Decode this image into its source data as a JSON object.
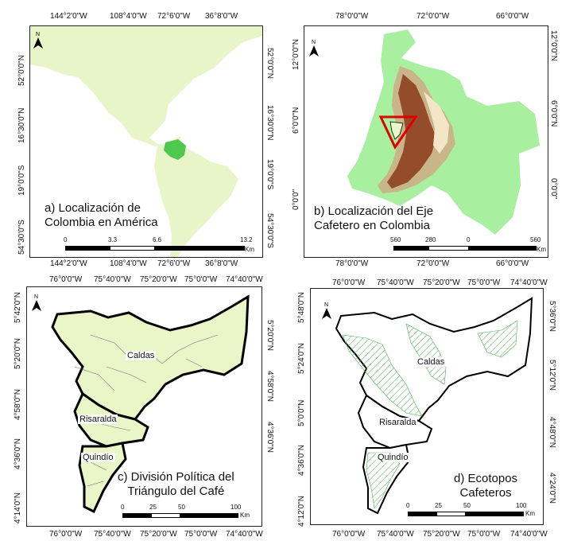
{
  "panels": {
    "a": {
      "caption_line1": "a) Localización de",
      "caption_line2": "Colombia en América",
      "top_ticks": [
        "144°2'0\"W",
        "108°4'0\"W",
        "72°6'0\"W",
        "36°8'0\"W"
      ],
      "bottom_ticks": [
        "144°2'0\"W",
        "108°4'0\"W",
        "72°6'0\"W",
        "36°8'0\"W"
      ],
      "left_ticks": [
        "52°0'0\"N",
        "16°30'0\"N",
        "19°0'0\"S",
        "54°30'0\"S"
      ],
      "right_ticks": [
        "52°0'0\"N",
        "16°30'0\"N",
        "19°0'0\"S",
        "54°30'0\"S"
      ],
      "scale_labels": [
        "0",
        "3.3",
        "6.6",
        "13.2"
      ],
      "scale_unit": "Km",
      "north": "N"
    },
    "b": {
      "caption_line1": "b) Localización del Eje",
      "caption_line2": "Cafetero en Colombia",
      "top_ticks": [
        "78°0'0\"W",
        "72°0'0\"W",
        "66°0'0\"W"
      ],
      "bottom_ticks": [
        "78°0'0\"W",
        "72°0'0\"W",
        "66°0'0\"W"
      ],
      "left_ticks": [
        "12°0'0\"N",
        "6°0'0\"N",
        "0°0'0\""
      ],
      "right_ticks": [
        "12°0'0\"N",
        "6°0'0\"N",
        "0°0'0\""
      ],
      "scale_labels": [
        "560",
        "280",
        "0",
        "560"
      ],
      "scale_unit": "Km",
      "north": "N"
    },
    "c": {
      "caption_line1": "c) División Política del",
      "caption_line2": "Triángulo del Café",
      "top_ticks": [
        "76°0'0\"W",
        "75°40'0\"W",
        "75°20'0\"W",
        "75°0'0\"W",
        "74°40'0\"W"
      ],
      "bottom_ticks": [
        "76°0'0\"W",
        "75°40'0\"W",
        "75°20'0\"W",
        "75°0'0\"W",
        "74°40'0\"W"
      ],
      "left_ticks": [
        "5°42'0\"N",
        "5°20'0\"N",
        "4°58'0\"N",
        "4°36'0\"N",
        "4°14'0\"N"
      ],
      "right_ticks": [
        "5°20'0\"N",
        "4°58'0\"N",
        "4°36'0\"N"
      ],
      "scale_labels": [
        "0",
        "25",
        "50",
        "100"
      ],
      "scale_unit": "Km",
      "north": "N",
      "regions": [
        "Caldas",
        "Risaralda",
        "Quindío"
      ]
    },
    "d": {
      "caption_line1": "d) Ecotopos",
      "caption_line2": "Cafeteros",
      "top_ticks": [
        "76°0'0\"W",
        "75°40'0\"W",
        "75°20'0\"W",
        "75°0'0\"W",
        "74°40'0\"W"
      ],
      "bottom_ticks": [
        "76°0'0\"W",
        "75°40'0\"W",
        "75°20'0\"W",
        "75°0'0\"W",
        "74°40'0\"W"
      ],
      "left_ticks": [
        "5°48'0\"N",
        "5°24'0\"N",
        "5°0'0\"N",
        "4°36'0\"N",
        "4°12'0\"N"
      ],
      "right_ticks": [
        "5°36'0\"N",
        "5°12'0\"N",
        "4°48'0\"N",
        "4°24'0\"N"
      ],
      "scale_labels": [
        "0",
        "25",
        "50",
        "100"
      ],
      "scale_unit": "Km",
      "north": "N",
      "regions": [
        "Caldas",
        "Risaralda",
        "Quindío"
      ]
    }
  },
  "colors": {
    "land_light": "#e8f5c8",
    "colombia": "#4ec94e",
    "colombia_bg": "#a8f0a0",
    "relief_dark": "#8b3a1a",
    "triangle": "#e00000",
    "eje_fill": "#eaf5c8",
    "ecotope_hatch": "#4caf50"
  }
}
